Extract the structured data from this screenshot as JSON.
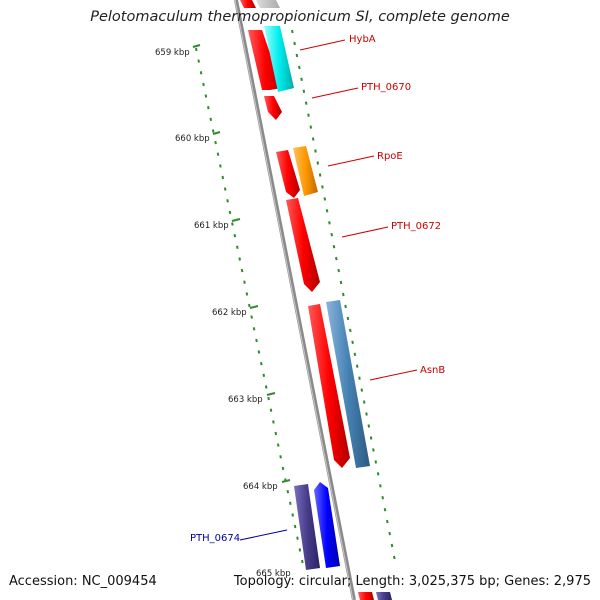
{
  "title": "Pelotomaculum thermopropionicum SI, complete genome",
  "footer": {
    "accession": "Accession: NC_009454",
    "stats": "Topology: circular; Length: 3,025,375 bp; Genes: 2,975"
  },
  "ruler": [
    {
      "label": "659 kbp"
    },
    {
      "label": "660 kbp"
    },
    {
      "label": "661 kbp"
    },
    {
      "label": "662 kbp"
    },
    {
      "label": "663 kbp"
    },
    {
      "label": "664 kbp"
    },
    {
      "label": "665 kbp"
    }
  ],
  "gene_labels": [
    {
      "text": "HybA",
      "color": "#cc0000"
    },
    {
      "text": "PTH_0670",
      "color": "#cc0000"
    },
    {
      "text": "RpoE",
      "color": "#cc0000"
    },
    {
      "text": "PTH_0672",
      "color": "#cc0000"
    },
    {
      "text": "AsnB",
      "color": "#cc0000"
    },
    {
      "text": "PTH_0674",
      "color": "#000099"
    }
  ],
  "colors": {
    "red": "#ff0000",
    "cyan": "#00e5e5",
    "orange": "#ff9900",
    "steel": "#4682b4",
    "slate": "#483d8b",
    "blue": "#0000ff",
    "backbone": "#888888",
    "ruler": "#2e8b2e"
  }
}
